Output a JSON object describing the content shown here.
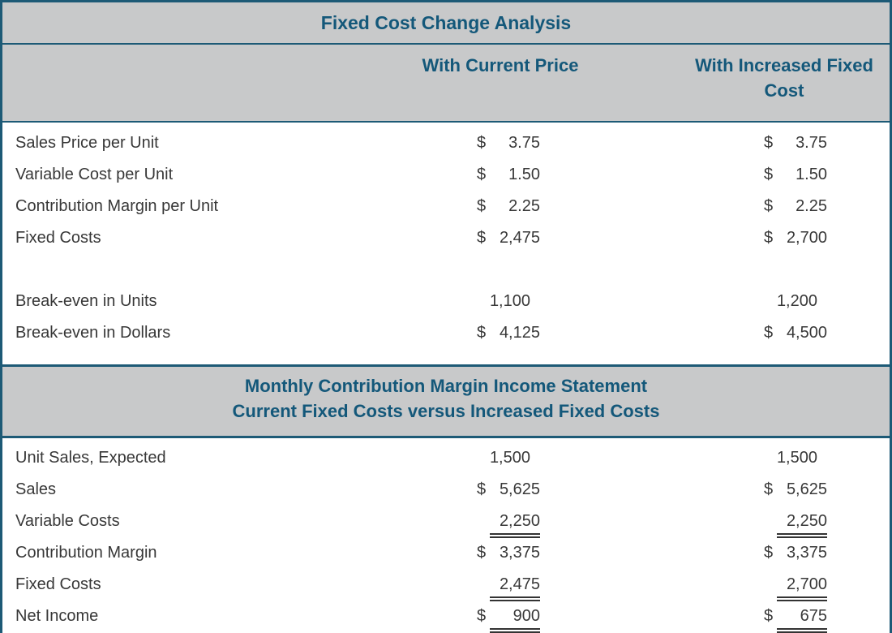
{
  "title": "Fixed Cost Change Analysis",
  "columns": {
    "current": "With Current Price",
    "increased": "With Increased Fixed Cost"
  },
  "statement_header": {
    "line1": "Monthly Contribution Margin Income Statement",
    "line2": "Current Fixed Costs versus Increased Fixed Costs"
  },
  "analysis": {
    "rows": [
      {
        "label": "Sales Price per Unit",
        "current": {
          "prefix": "$",
          "value": "3.75"
        },
        "increased": {
          "prefix": "$",
          "value": "3.75"
        }
      },
      {
        "label": "Variable Cost per Unit",
        "current": {
          "prefix": "$",
          "value": "1.50"
        },
        "increased": {
          "prefix": "$",
          "value": "1.50"
        }
      },
      {
        "label": "Contribution Margin per Unit",
        "current": {
          "prefix": "$",
          "value": "2.25"
        },
        "increased": {
          "prefix": "$",
          "value": "2.25"
        }
      },
      {
        "label": "Fixed Costs",
        "current": {
          "prefix": "$",
          "value": "2,475"
        },
        "increased": {
          "prefix": "$",
          "value": "2,700"
        }
      },
      {
        "label": "Break-even in Units",
        "current": {
          "prefix": "",
          "value": "1,100"
        },
        "increased": {
          "prefix": "",
          "value": "1,200"
        }
      },
      {
        "label": "Break-even in Dollars",
        "current": {
          "prefix": "$",
          "value": "4,125"
        },
        "increased": {
          "prefix": "$",
          "value": "4,500"
        }
      }
    ]
  },
  "statement": {
    "rows": [
      {
        "label": "Unit Sales, Expected",
        "current": {
          "prefix": "",
          "value": "1,500"
        },
        "increased": {
          "prefix": "",
          "value": "1,500"
        },
        "underline": false
      },
      {
        "label": "Sales",
        "current": {
          "prefix": "$",
          "value": "5,625"
        },
        "increased": {
          "prefix": "$",
          "value": "5,625"
        },
        "underline": false
      },
      {
        "label": "Variable Costs",
        "current": {
          "prefix": "",
          "value": "2,250"
        },
        "increased": {
          "prefix": "",
          "value": "2,250"
        },
        "underline": true
      },
      {
        "label": "Contribution Margin",
        "current": {
          "prefix": "$",
          "value": "3,375"
        },
        "increased": {
          "prefix": "$",
          "value": "3,375"
        },
        "underline": false
      },
      {
        "label": "Fixed Costs",
        "current": {
          "prefix": "",
          "value": "2,475"
        },
        "increased": {
          "prefix": "",
          "value": "2,700"
        },
        "underline": true
      },
      {
        "label": "Net Income",
        "current": {
          "prefix": "$",
          "value": "900"
        },
        "increased": {
          "prefix": "$",
          "value": "675"
        },
        "underline": true
      }
    ]
  },
  "colors": {
    "accent_text": "#14587a",
    "border": "#1d5a76",
    "header_bg": "#c8c9ca",
    "body_text": "#383838"
  },
  "chart_data": {
    "type": "table",
    "title": "Fixed Cost Change Analysis",
    "columns": [
      "",
      "With Current Price",
      "With Increased Fixed Cost"
    ],
    "rows": [
      [
        "Sales Price per Unit",
        "$ 3.75",
        "$ 3.75"
      ],
      [
        "Variable Cost per Unit",
        "$ 1.50",
        "$ 1.50"
      ],
      [
        "Contribution Margin per Unit",
        "$ 2.25",
        "$ 2.25"
      ],
      [
        "Fixed Costs",
        "$2,475",
        "$2,700"
      ],
      [
        "Break-even in Units",
        "1,100",
        "1,200"
      ],
      [
        "Break-even in Dollars",
        "$4,125",
        "$4,500"
      ],
      [
        "Unit Sales, Expected",
        "1,500",
        "1,500"
      ],
      [
        "Sales",
        "$5,625",
        "$5,625"
      ],
      [
        "Variable Costs",
        "2,250",
        "2,250"
      ],
      [
        "Contribution Margin",
        "$3,375",
        "$3,375"
      ],
      [
        "Fixed Costs",
        "2,475",
        "2,700"
      ],
      [
        "Net Income",
        "$ 900",
        "$ 675"
      ]
    ]
  }
}
